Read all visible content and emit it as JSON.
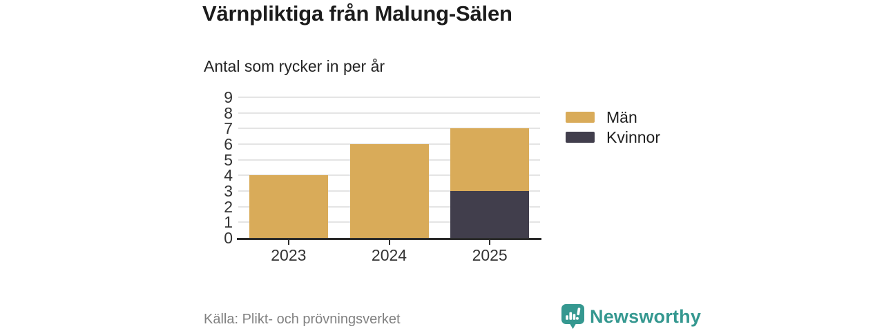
{
  "header": {
    "title": "Värnpliktiga från Malung-Sälen",
    "subtitle": "Antal som rycker in per år"
  },
  "chart_data": {
    "type": "bar",
    "stacked": true,
    "title": "Värnpliktiga från Malung-Sälen",
    "subtitle": "Antal som rycker in per år",
    "categories": [
      "2023",
      "2024",
      "2025"
    ],
    "series": [
      {
        "name": "Män",
        "color": "#D9AB59",
        "values": [
          4,
          6,
          4
        ]
      },
      {
        "name": "Kvinnor",
        "color": "#413E4C",
        "values": [
          0,
          0,
          3
        ]
      }
    ],
    "stack_order_bottom_to_top": [
      "Kvinnor",
      "Män"
    ],
    "totals": [
      4,
      6,
      7
    ],
    "xlabel": "",
    "ylabel": "",
    "ylim": [
      0,
      9
    ],
    "yticks": [
      0,
      1,
      2,
      3,
      4,
      5,
      6,
      7,
      8,
      9
    ],
    "grid": "horizontal",
    "legend_position": "right"
  },
  "footer": {
    "source": "Källa: Plikt- och prövningsverket",
    "brand": "Newsworthy"
  },
  "colors": {
    "men": "#D9AB59",
    "women": "#413E4C",
    "axis": "#2B2B2B",
    "gridline": "#E4E4E4",
    "tick_text": "#333333",
    "muted_text": "#818181",
    "brand_teal": "#359890"
  }
}
